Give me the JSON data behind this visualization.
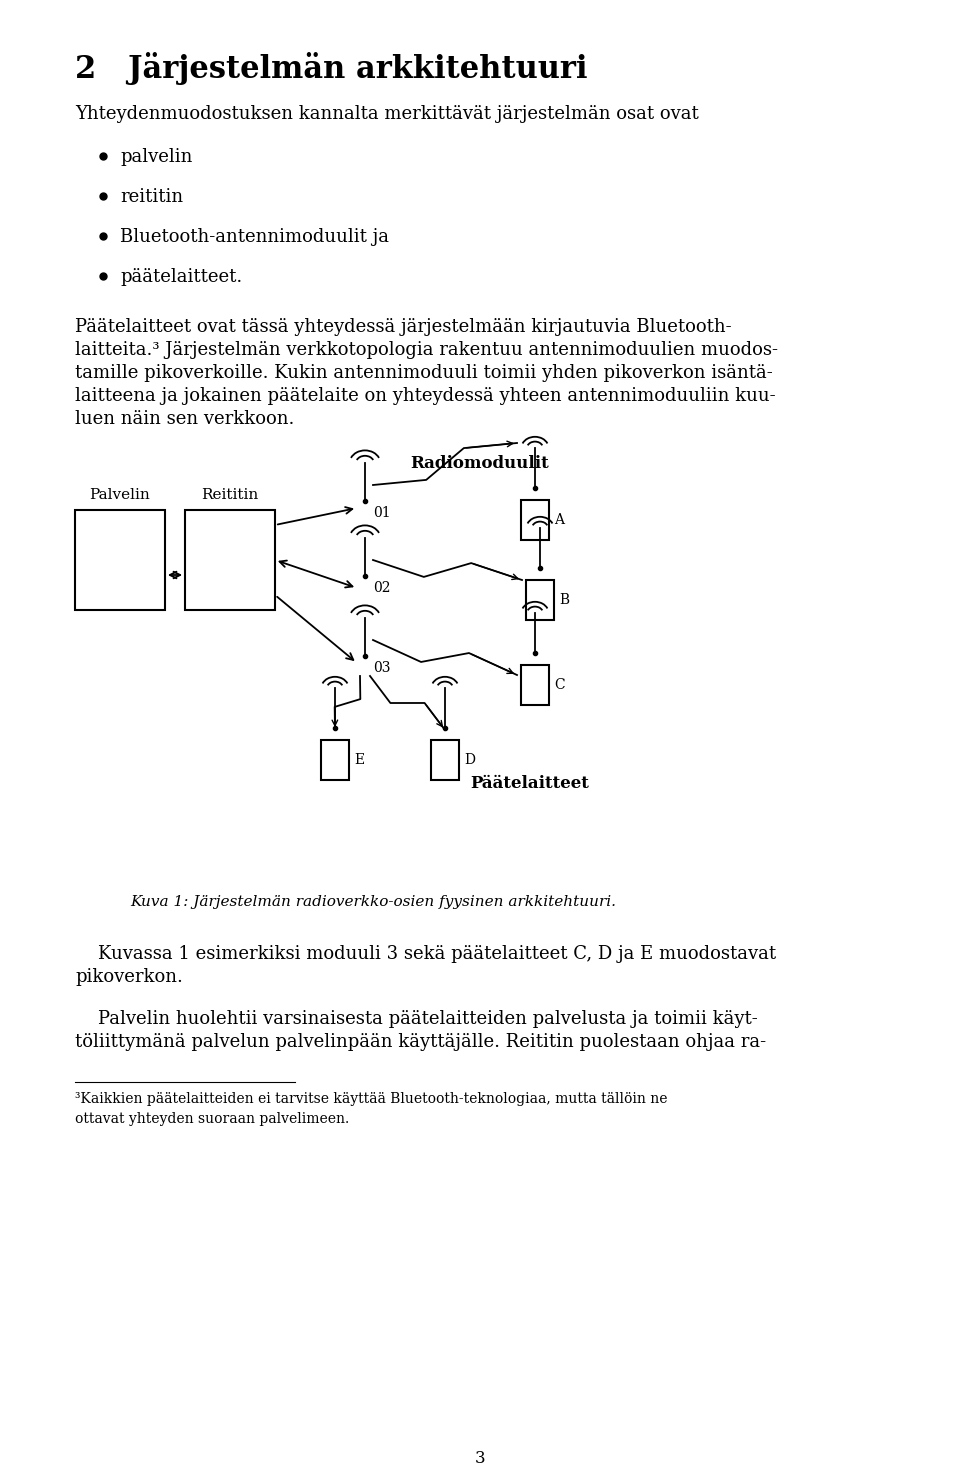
{
  "title": "2   Järjestelmän arkkitehtuuri",
  "intro_line": "Yhteydenmuodostuksen kannalta merkittävät järjestelmän osat ovat",
  "bullets": [
    "palvelin",
    "reititin",
    "Bluetooth-antennimoduulit ja",
    "päätelaitteet."
  ],
  "para1_lines": [
    "Päätelaitteet ovat tässä yhteydessä järjestelmään kirjautuvia Bluetooth-",
    "laitteita.³ Järjestelmän verkkotopologia rakentuu antennimoduulien muodos-",
    "tamille pikoverkoille. Kukin antennimoduuli toimii yhden pikoverkon isäntä-",
    "laitteena ja jokainen päätelaite on yhteydessä yhteen antennimoduuliin kuu-",
    "luen näin sen verkkoon."
  ],
  "label_radiomoduulit": "Radiomoduulit",
  "label_palvelin": "Palvelin",
  "label_reititin": "Reititin",
  "label_paatelaitteet": "Päätelaitteet",
  "label_01": "01",
  "label_02": "02",
  "label_03": "03",
  "label_A": "A",
  "label_B": "B",
  "label_C": "C",
  "label_D": "D",
  "label_E": "E",
  "caption": "Kuva 1: Järjestelmän radioverkko-osien fyysinen arkkitehtuuri.",
  "para2_lines": [
    "    Kuvassa 1 esimerkiksi moduuli 3 sekä päätelaitteet C, D ja E muodostavat",
    "pikoverkon."
  ],
  "para3_lines": [
    "    Palvelin huolehtii varsinaisesta päätelaitteiden palvelusta ja toimii käyt-",
    "töliittymänä palvelun palvelinpään käyttäjälle. Reititin puolestaan ohjaa ra-"
  ],
  "footnote_lines": [
    "³Kaikkien päätelaitteiden ei tarvitse käyttää Bluetooth-teknologiaa, mutta tällöin ne",
    "ottavat yhteyden suoraan palvelimeen."
  ],
  "page_number": "3",
  "bg": "#ffffff",
  "fg": "#000000"
}
